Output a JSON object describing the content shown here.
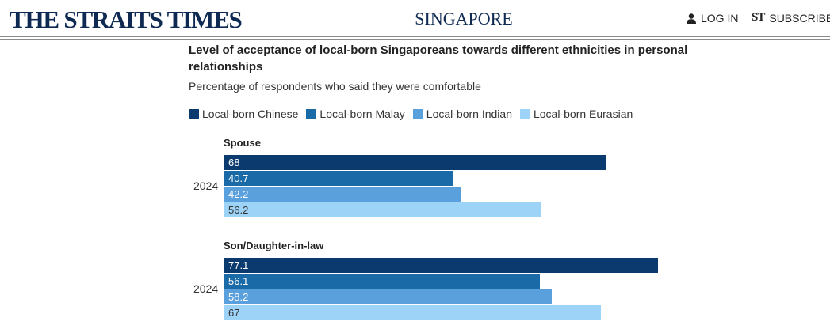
{
  "header": {
    "logo": "THE STRAITS TIMES",
    "section": "SINGAPORE",
    "login_label": "LOG IN",
    "subscribe_label": "SUBSCRIBE",
    "subscribe_mark": "ST",
    "login_icon": "person-icon"
  },
  "chart_data": {
    "type": "bar",
    "orientation": "horizontal",
    "title": "Level of acceptance of local-born Singaporeans towards different ethnicities in personal relationships",
    "subtitle": "Percentage of respondents who said they were comfortable",
    "legend_position": "top-left",
    "xlim": [
      0,
      100
    ],
    "grid": false,
    "series": [
      {
        "name": "Local-born Chinese",
        "color": "#0a3a6e"
      },
      {
        "name": "Local-born Malay",
        "color": "#1a6aa8"
      },
      {
        "name": "Local-born Indian",
        "color": "#5aa0dc"
      },
      {
        "name": "Local-born Eurasian",
        "color": "#9dd3f7"
      }
    ],
    "groups": [
      {
        "title": "Spouse",
        "category": "2024",
        "values": [
          68,
          40.7,
          42.2,
          56.2
        ]
      },
      {
        "title": "Son/Daughter-in-law",
        "category": "2024",
        "values": [
          77.1,
          56.1,
          58.2,
          67
        ]
      }
    ]
  }
}
